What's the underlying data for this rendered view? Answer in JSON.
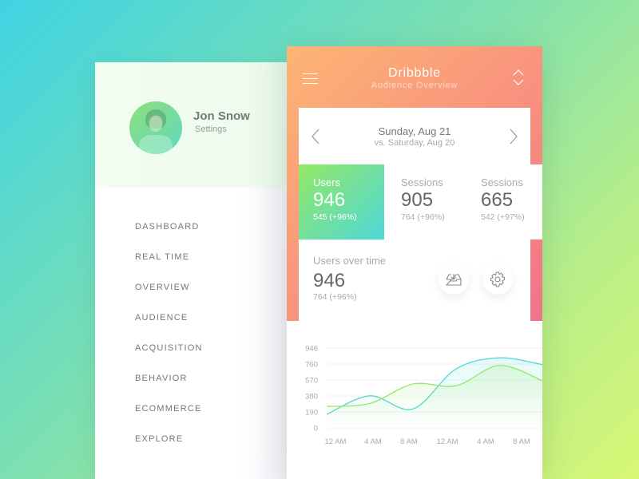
{
  "sidebar": {
    "user_name": "Jon Snow",
    "user_link": "Settings",
    "items": [
      "DASHBOARD",
      "REAL TIME",
      "OVERVIEW",
      "AUDIENCE",
      "ACQUISITION",
      "BEHAVIOR",
      "ECOMMERCE",
      "EXPLORE"
    ]
  },
  "header": {
    "title": "Dribbble",
    "subtitle": "Audience Overview"
  },
  "date": {
    "current": "Sunday, Aug 21",
    "compare": "vs. Saturday, Aug 20"
  },
  "metrics": [
    {
      "label": "Users",
      "value": "946",
      "sub": "545 (+96%)",
      "active": true
    },
    {
      "label": "Sessions",
      "value": "905",
      "sub": "764 (+96%)"
    },
    {
      "label": "Sessions",
      "value": "665",
      "sub": "542 (+97%)"
    }
  ],
  "users_over_time": {
    "label": "Users over time",
    "value": "946",
    "sub": "764 (+96%)"
  },
  "colors": {
    "accent_cyan": "#4fd7d8",
    "accent_green": "#94e865",
    "header_start": "#fdb574",
    "header_end": "#f0738a"
  },
  "chart_data": {
    "type": "area",
    "y_ticks": [
      "946",
      "760",
      "570",
      "380",
      "190",
      "0"
    ],
    "ylim": [
      0,
      946
    ],
    "x_ticks": [
      "12 AM",
      "4 AM",
      "8 AM",
      "12 AM",
      "4 AM",
      "8 AM"
    ],
    "series": [
      {
        "color": "#4fd7d8",
        "values": [
          160,
          380,
          225,
          700,
          830,
          750
        ]
      },
      {
        "color": "#94e865",
        "values": [
          255,
          290,
          520,
          500,
          740,
          560
        ]
      }
    ],
    "grid": true
  }
}
